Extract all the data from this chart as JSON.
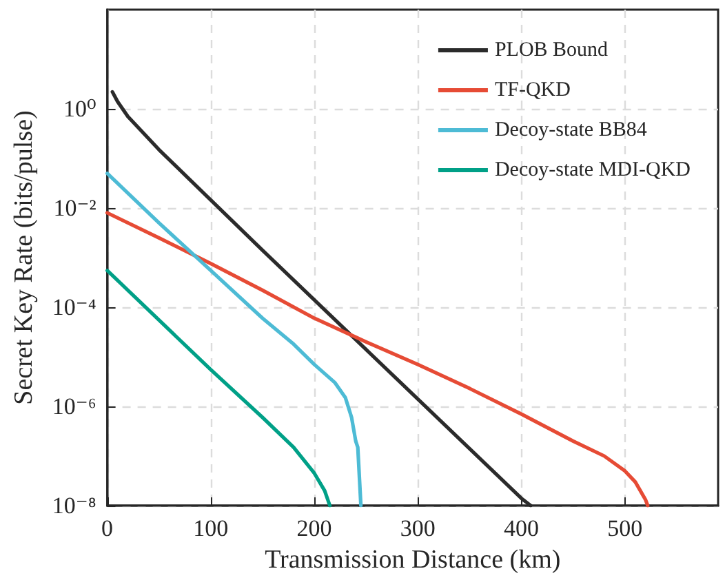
{
  "chart_data": {
    "type": "line",
    "xlabel": "Transmission Distance (km)",
    "ylabel": "Secret Key Rate (bits/pulse)",
    "xlim": [
      0,
      590
    ],
    "xticks": [
      0,
      100,
      200,
      300,
      400,
      500
    ],
    "ylim": [
      1e-08,
      100
    ],
    "yticks": [
      {
        "value": 1e-08,
        "label": "10⁻⁸"
      },
      {
        "value": 1e-06,
        "label": "10⁻⁶"
      },
      {
        "value": 0.0001,
        "label": "10⁻⁴"
      },
      {
        "value": 0.01,
        "label": "10⁻²"
      },
      {
        "value": 1,
        "label": "10⁰"
      }
    ],
    "log": "y",
    "grid": true,
    "legend": "top right",
    "marker": "none",
    "line_style": "solid",
    "series": [
      {
        "name": "PLOB Bound",
        "color": "#2b2b2b",
        "x": [
          5,
          10,
          20,
          50,
          100,
          150,
          200,
          250,
          300,
          350,
          400,
          409
        ],
        "values": [
          2.2,
          1.4,
          0.7,
          0.15,
          0.0145,
          0.0014,
          0.00014,
          1.4e-05,
          1.4e-06,
          1.4e-07,
          1.4e-08,
          1e-08
        ]
      },
      {
        "name": "TF-QKD",
        "color": "#e64b35",
        "x": [
          0,
          50,
          100,
          150,
          200,
          250,
          300,
          350,
          400,
          450,
          480,
          500,
          510,
          520,
          522
        ],
        "values": [
          0.008,
          0.0025,
          0.00076,
          0.00022,
          6e-05,
          2e-05,
          7e-06,
          2.3e-06,
          7e-07,
          2e-07,
          1e-07,
          5e-08,
          3e-08,
          1.3e-08,
          1e-08
        ]
      },
      {
        "name": "Decoy-state BB84",
        "color": "#4dbbd5",
        "x": [
          0,
          50,
          100,
          150,
          180,
          200,
          220,
          230,
          236,
          240,
          242,
          245
        ],
        "values": [
          0.05,
          0.005,
          0.00055,
          6e-05,
          1.8e-05,
          7e-06,
          3e-06,
          1.5e-06,
          6e-07,
          2e-07,
          1.5e-07,
          1e-08
        ]
      },
      {
        "name": "Decoy-state MDI-QKD",
        "color": "#00a087",
        "x": [
          0,
          50,
          100,
          150,
          180,
          200,
          210,
          215
        ],
        "values": [
          0.00055,
          5.5e-05,
          5.5e-06,
          6e-07,
          1.5e-07,
          4.5e-08,
          2e-08,
          1e-08
        ]
      }
    ]
  }
}
